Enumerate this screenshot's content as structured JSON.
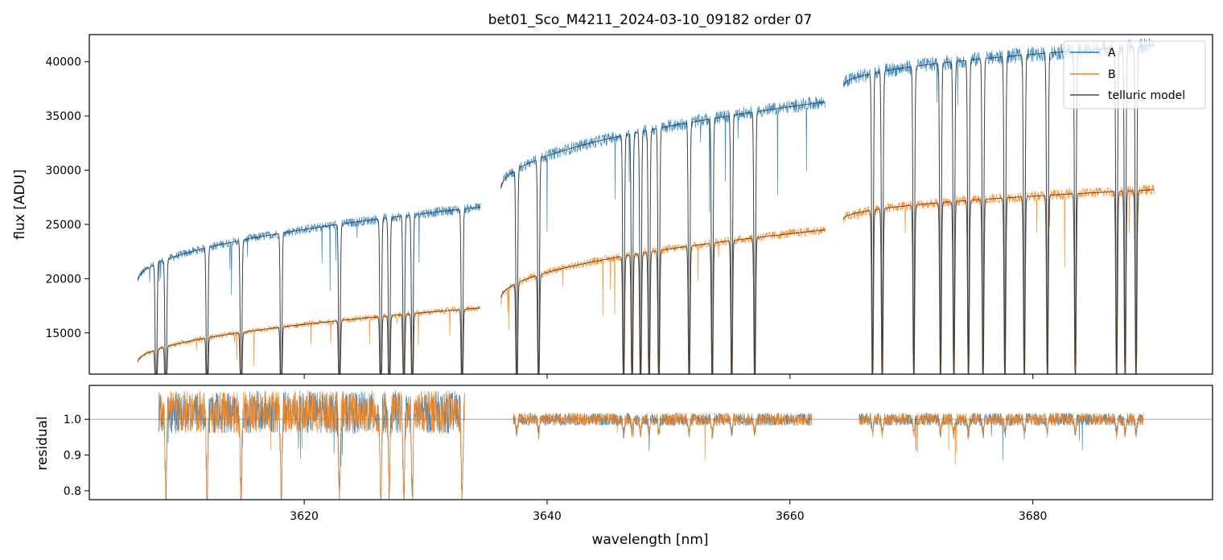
{
  "title": "bet01_Sco_M4211_2024-03-10_09182  order 07",
  "colors": {
    "A": "#1f77b4",
    "B": "#ff7f0e",
    "telluric": "#303030",
    "refline": "#808080"
  },
  "chart_data": [
    {
      "panel": "top",
      "type": "line",
      "ylabel": "flux [ADU]",
      "xlim": [
        3602.3,
        3694.8
      ],
      "ylim": [
        11200,
        42500
      ],
      "yticks": [
        15000,
        20000,
        25000,
        30000,
        35000,
        40000
      ],
      "xticks": [
        3620,
        3640,
        3660,
        3680
      ],
      "show_xtick_labels": false,
      "grid": false,
      "legend": {
        "placement": "top-right",
        "entries": [
          "A",
          "B",
          "telluric model"
        ]
      },
      "segments": [
        {
          "x0": 3606.3,
          "x1": 3634.5,
          "A": [
            19800,
            26600
          ],
          "B": [
            12300,
            17300
          ]
        },
        {
          "x0": 3636.2,
          "x1": 3662.9,
          "A": [
            28300,
            36300
          ],
          "B": [
            18200,
            24500
          ]
        },
        {
          "x0": 3664.4,
          "x1": 3690.0,
          "A": [
            37800,
            41500
          ],
          "B": [
            25500,
            28200
          ]
        }
      ],
      "absorption_lines_nm": [
        3607.8,
        3608.6,
        3612.0,
        3614.8,
        3618.1,
        3622.9,
        3626.3,
        3627.0,
        3628.2,
        3628.9,
        3633.0,
        3637.5,
        3639.3,
        3646.3,
        3647.0,
        3647.7,
        3648.4,
        3649.2,
        3651.7,
        3653.6,
        3655.2,
        3657.1,
        3666.8,
        3667.6,
        3670.2,
        3672.4,
        3673.5,
        3674.7,
        3675.9,
        3677.7,
        3679.3,
        3681.2,
        3683.5,
        3686.9,
        3687.6,
        3688.5
      ]
    },
    {
      "panel": "bottom",
      "type": "line",
      "ylabel": "residual",
      "xlabel": "wavelength [nm]",
      "xlim": [
        3602.3,
        3694.8
      ],
      "ylim": [
        0.775,
        1.095
      ],
      "yticks": [
        0.8,
        0.9,
        1.0
      ],
      "ytick_labels": [
        "0.8",
        "0.9",
        "1.0"
      ],
      "xticks": [
        3620,
        3640,
        3660,
        3680
      ],
      "reference_line": 1.0,
      "segments": [
        {
          "x0": 3608.0,
          "x1": 3633.2
        },
        {
          "x0": 3637.2,
          "x1": 3661.8
        },
        {
          "x0": 3665.7,
          "x1": 3689.1
        }
      ]
    }
  ]
}
